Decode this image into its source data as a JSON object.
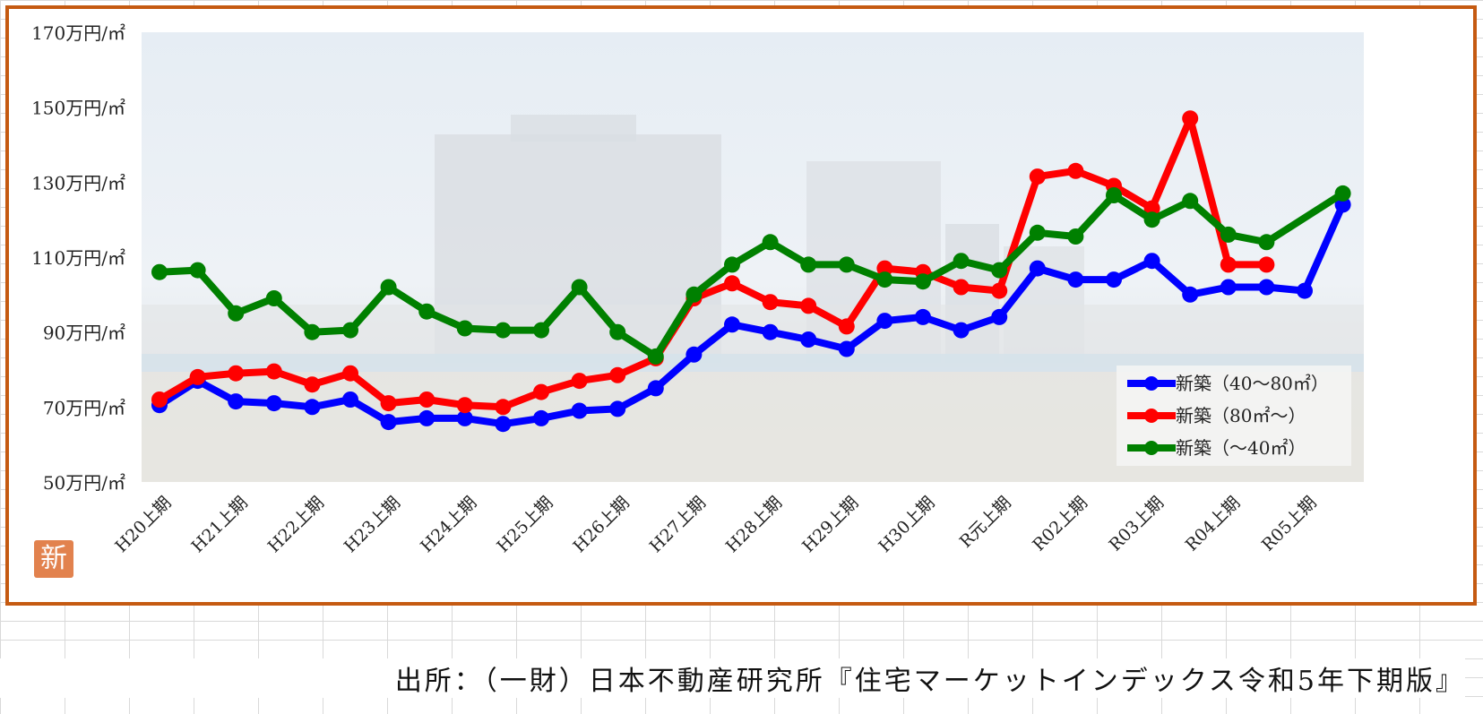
{
  "chart_data": {
    "type": "line",
    "y_tick_labels": [
      "170万円/㎡",
      "150万円/㎡",
      "130万円/㎡",
      "110万円/㎡",
      "90万円/㎡",
      "70万円/㎡",
      "50万円/㎡"
    ],
    "y_ticks": [
      170,
      150,
      130,
      110,
      90,
      70,
      50
    ],
    "ylim": [
      50,
      170
    ],
    "x_tick_labels": [
      "H20上期",
      "H21上期",
      "H22上期",
      "H23上期",
      "H24上期",
      "H25上期",
      "H26上期",
      "H27上期",
      "H28上期",
      "H29上期",
      "H30上期",
      "R元上期",
      "R02上期",
      "R03上期",
      "R04上期",
      "R05上期"
    ],
    "period_count": 32,
    "grid": false,
    "legend_position": "bottom-right",
    "series": [
      {
        "name": "新築（40～80㎡）",
        "color": "#0000ff",
        "values": [
          70.5,
          77,
          71.5,
          71,
          70,
          72,
          66,
          67,
          67,
          65.5,
          67,
          69,
          69.5,
          75,
          84,
          92,
          90,
          88,
          85.5,
          93,
          94,
          90.5,
          94,
          107,
          104,
          104,
          109,
          100,
          102,
          102,
          101,
          124
        ]
      },
      {
        "name": "新築（80㎡～）",
        "color": "#ff0000",
        "values": [
          72,
          78,
          79,
          79.5,
          76,
          79,
          71,
          72,
          70.5,
          70,
          74,
          77,
          78.5,
          83,
          99,
          103,
          98,
          97,
          91.5,
          107,
          106,
          102,
          101,
          131.5,
          133,
          129,
          123,
          147,
          108,
          108,
          null,
          null
        ]
      },
      {
        "name": "新築（～40㎡）",
        "color": "#008000",
        "values": [
          106,
          106.5,
          95,
          99,
          90,
          90.5,
          102,
          95.5,
          91,
          90.5,
          90.5,
          102,
          90,
          83.5,
          100,
          108,
          114,
          108,
          108,
          104,
          103.5,
          109,
          106.5,
          116.5,
          115.5,
          126.5,
          120,
          125,
          116,
          114,
          null,
          127
        ]
      }
    ]
  },
  "logo_char": "新",
  "source_text": "出所：（一財）日本不動産研究所『住宅マーケットインデックス令和5年下期版』"
}
